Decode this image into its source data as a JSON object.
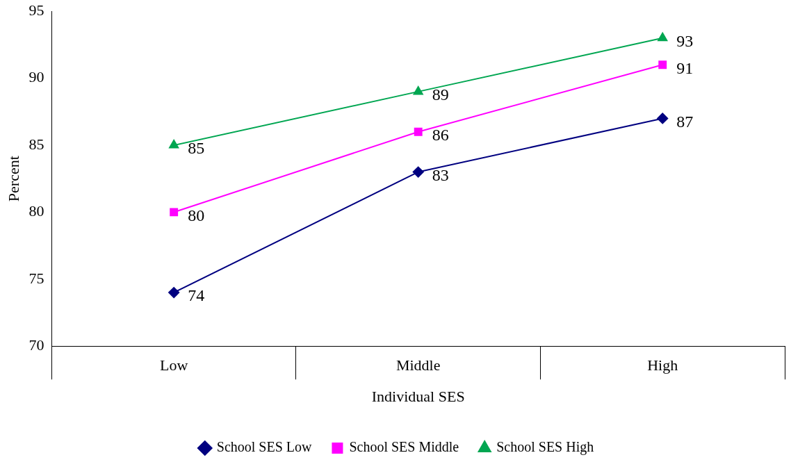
{
  "chart_data": {
    "type": "line",
    "xlabel": "Individual SES",
    "ylabel": "Percent",
    "categories": [
      "Low",
      "Middle",
      "High"
    ],
    "series": [
      {
        "name": "School SES Low",
        "color": "#000080",
        "values": [
          74,
          83,
          87
        ],
        "marker": "diamond"
      },
      {
        "name": "School SES Middle",
        "color": "#ff00ff",
        "values": [
          80,
          86,
          91
        ],
        "marker": "square"
      },
      {
        "name": "School SES High",
        "color": "#00a651",
        "values": [
          85,
          89,
          93
        ],
        "marker": "triangle"
      }
    ],
    "ylim": [
      70,
      95
    ],
    "yticks": [
      70,
      75,
      80,
      85,
      90,
      95
    ],
    "grid": false,
    "legend": "bottom",
    "data_labels": true,
    "line_style": "solid"
  }
}
